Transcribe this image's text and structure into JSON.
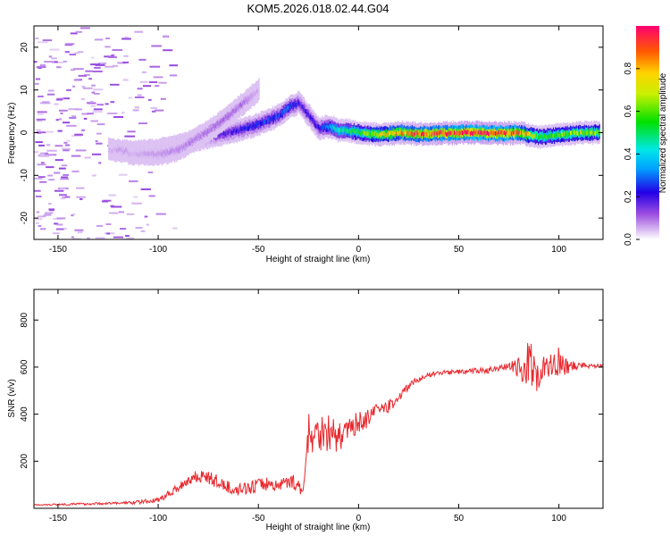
{
  "title": "KOM5.2026.018.02.44.G04",
  "chart_data": [
    {
      "type": "heatmap",
      "xlabel": "Height of straight line (km)",
      "ylabel": "Frequency (Hz)",
      "xlim": [
        -162,
        122
      ],
      "ylim": [
        -25,
        25
      ],
      "xticks": [
        -150,
        -100,
        -50,
        0,
        50,
        100
      ],
      "yticks": [
        -20,
        -10,
        0,
        10,
        20
      ],
      "colorbar": {
        "label": "Normalized spectral amplitude",
        "ticks": [
          "0.0",
          "0.2",
          "0.4",
          "0.6",
          "0.8"
        ],
        "range": [
          0,
          1
        ]
      },
      "ridges": [
        {
          "x": [
            -125,
            -110,
            -100,
            -90,
            -80,
            -70,
            -60,
            -50,
            -40,
            -35,
            -30,
            -25,
            -20,
            -15,
            -10,
            -5,
            0,
            10,
            20,
            30,
            40,
            50,
            60,
            70,
            80,
            90,
            100,
            110,
            120
          ],
          "f": [
            -4,
            -4.5,
            -4,
            -3,
            -1.5,
            -0.5,
            0.5,
            2,
            4,
            6,
            7,
            4,
            1,
            1.5,
            0.5,
            0.5,
            0,
            -0.5,
            0,
            -0.3,
            -0.2,
            0,
            0,
            -0.2,
            0,
            -1,
            -0.5,
            0,
            0
          ],
          "amp": [
            0.05,
            0.08,
            0.1,
            0.12,
            0.15,
            0.18,
            0.2,
            0.25,
            0.25,
            0.28,
            0.2,
            0.2,
            0.2,
            0.35,
            0.45,
            0.5,
            0.55,
            0.7,
            0.8,
            0.85,
            0.9,
            0.95,
            0.97,
            0.95,
            0.85,
            0.55,
            0.6,
            0.65,
            0.6
          ]
        },
        {
          "x": [
            -115,
            -100,
            -90,
            -80,
            -70,
            -60,
            -55,
            -50
          ],
          "f": [
            -5,
            -5,
            -4,
            -1,
            2,
            6,
            8,
            10
          ],
          "amp": [
            0.05,
            0.07,
            0.08,
            0.09,
            0.1,
            0.1,
            0.08,
            0.05
          ]
        }
      ]
    },
    {
      "type": "line",
      "xlabel": "Height of straight line (km)",
      "ylabel": "SNR (v/v)",
      "xlim": [
        -162,
        122
      ],
      "ylim": [
        0,
        930
      ],
      "xticks": [
        -150,
        -100,
        -50,
        0,
        50,
        100
      ],
      "yticks": [
        200,
        400,
        600,
        800
      ],
      "series": [
        {
          "color": "#e8282d",
          "x": [
            -162,
            -140,
            -120,
            -110,
            -100,
            -95,
            -90,
            -85,
            -80,
            -75,
            -70,
            -65,
            -60,
            -55,
            -50,
            -45,
            -40,
            -35,
            -30,
            -28,
            -25,
            -20,
            -15,
            -10,
            -5,
            0,
            5,
            10,
            15,
            20,
            25,
            30,
            35,
            40,
            50,
            60,
            70,
            75,
            80,
            85,
            90,
            95,
            100,
            105,
            110,
            115,
            122
          ],
          "y": [
            15,
            18,
            22,
            26,
            35,
            60,
            90,
            120,
            140,
            130,
            110,
            90,
            80,
            85,
            100,
            105,
            95,
            120,
            100,
            50,
            300,
            330,
            320,
            300,
            330,
            370,
            380,
            420,
            430,
            470,
            520,
            550,
            565,
            575,
            580,
            585,
            590,
            600,
            600,
            600,
            580,
            600,
            610,
            600,
            610,
            605,
            610
          ],
          "noise": [
            3,
            5,
            5,
            8,
            10,
            15,
            20,
            25,
            30,
            30,
            30,
            25,
            25,
            25,
            30,
            30,
            25,
            30,
            30,
            20,
            80,
            80,
            90,
            60,
            50,
            45,
            40,
            35,
            30,
            20,
            15,
            12,
            10,
            10,
            10,
            12,
            15,
            20,
            40,
            120,
            80,
            60,
            50,
            30,
            15,
            10,
            10
          ]
        }
      ]
    }
  ]
}
